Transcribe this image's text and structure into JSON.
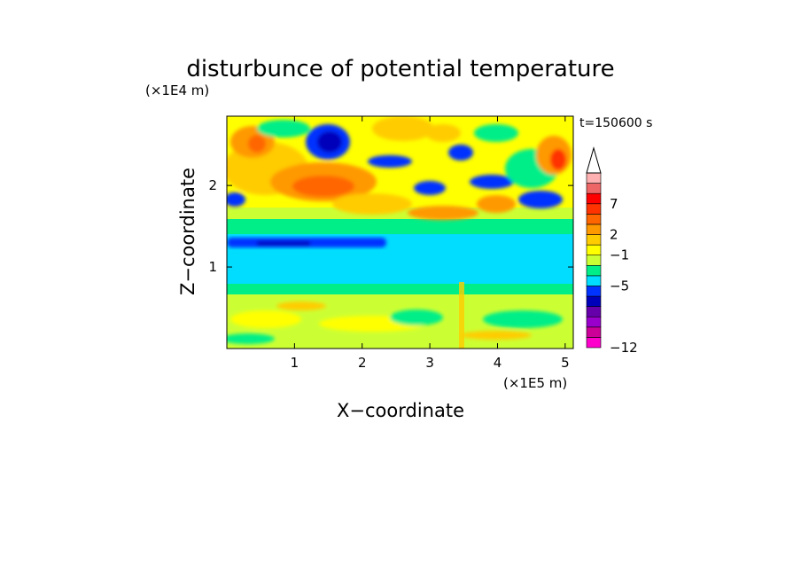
{
  "chart_data": {
    "type": "heatmap",
    "title": "disturbunce of potential temperature",
    "time_label": "t=150600 s",
    "xlabel": "X−coordinate",
    "ylabel": "Z−coordinate",
    "x_unit": "(×1E5 m)",
    "y_unit": "(×1E4 m)",
    "xlim": [
      0,
      5.12
    ],
    "ylim": [
      0,
      2.85
    ],
    "x_ticks": [
      "1",
      "2",
      "3",
      "4",
      "5"
    ],
    "y_ticks": [
      "1",
      "2"
    ],
    "colorbar": {
      "colors": [
        "#ff00cc",
        "#cc0099",
        "#9900cc",
        "#6600aa",
        "#0000bb",
        "#0033ff",
        "#00ddff",
        "#00ee88",
        "#ccff33",
        "#ffff00",
        "#ffcc00",
        "#ff9900",
        "#ff6600",
        "#ff3300",
        "#ff0000",
        "#ee6666",
        "#ffb0b0"
      ],
      "labels": [
        "−12",
        "−5",
        "−1",
        "2",
        "7"
      ],
      "extend": "max"
    }
  }
}
